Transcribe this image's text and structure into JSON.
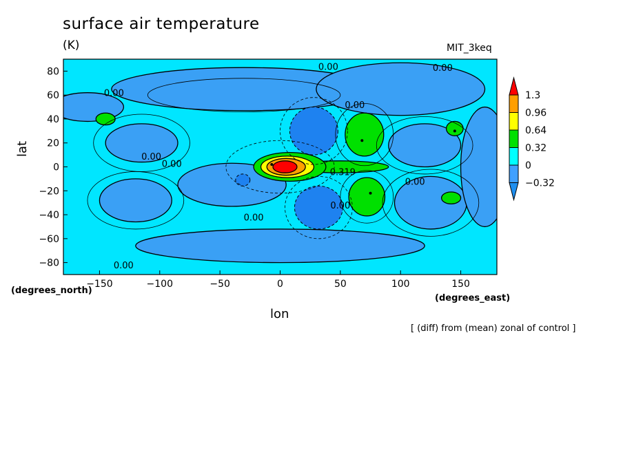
{
  "title": "surface air temperature",
  "units": "(K)",
  "model": "MIT_3keq",
  "footnote": "[ (diff) from (mean) zonal of control ]",
  "colors": {
    "bg": "#ffffff",
    "lt_neg032": "#1f8ff0",
    "n032_0": "#40a0ff",
    "z_032": "#00ffff",
    "p032_064": "#00e000",
    "p064_096": "#ffff00",
    "p096_13": "#ff9f00",
    "gt_13": "#ff0000",
    "base_fill": "#00e6ff",
    "neg_fill": "#3aa0f5",
    "deep_neg_fill": "#1e82f0"
  },
  "chart_data": {
    "type": "contour",
    "title": "surface air temperature",
    "units": "(K)",
    "model": "MIT_3keq",
    "xlabel": "lon",
    "ylabel": "lat",
    "x_units": "(degrees_east)",
    "y_units": "(degrees_north)",
    "xlim": [
      -180,
      180
    ],
    "ylim": [
      -90,
      90
    ],
    "x_ticks": [
      -150,
      -100,
      -50,
      0,
      50,
      100,
      150
    ],
    "y_ticks": [
      -80,
      -60,
      -40,
      -20,
      0,
      20,
      40,
      60,
      80
    ],
    "colorbar": {
      "levels": [
        "1.3",
        "0.96",
        "0.64",
        "0.32",
        "0",
        "−0.32"
      ],
      "colors": [
        "#ff0000",
        "#ff9f00",
        "#ffff00",
        "#00e000",
        "#00ffff",
        "#40a0ff",
        "#1f8ff0"
      ]
    },
    "contour_labels": [
      {
        "text": "0.00",
        "lon": 40,
        "lat": 84
      },
      {
        "text": "0.00",
        "lon": 135,
        "lat": 83
      },
      {
        "text": "0.00",
        "lon": -138,
        "lat": 62
      },
      {
        "text": "0.00",
        "lon": 62,
        "lat": 52
      },
      {
        "text": "0.00",
        "lon": -107,
        "lat": 9
      },
      {
        "text": "0.00",
        "lon": -90,
        "lat": 3
      },
      {
        "text": "0.319",
        "lon": 52,
        "lat": -4
      },
      {
        "text": "0.00",
        "lon": 112,
        "lat": -12
      },
      {
        "text": "0.00",
        "lon": 50,
        "lat": -32
      },
      {
        "text": "0.00",
        "lon": -22,
        "lat": -42
      },
      {
        "text": "0.00",
        "lon": -130,
        "lat": -82
      }
    ]
  }
}
